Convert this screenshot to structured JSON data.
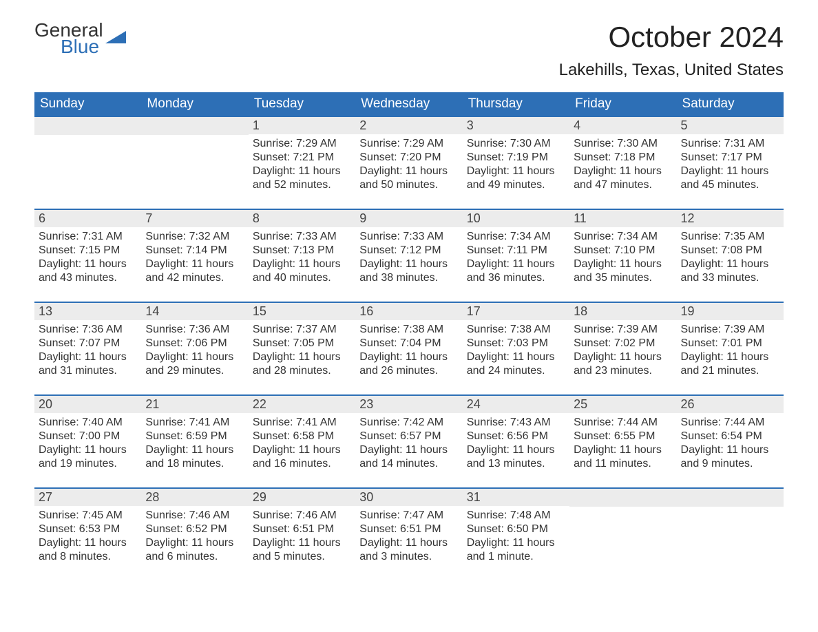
{
  "logo": {
    "text1": "General",
    "text2": "Blue",
    "flag_color": "#2d6fb6",
    "text_color_dark": "#333333"
  },
  "header": {
    "title": "October 2024",
    "location": "Lakehills, Texas, United States"
  },
  "colors": {
    "header_bg": "#2d6fb6",
    "header_text": "#ffffff",
    "row_accent": "#2d6fb6",
    "daynum_bg": "#ececec",
    "body_text": "#333333",
    "page_bg": "#ffffff"
  },
  "fonts": {
    "family": "Arial, Helvetica, sans-serif",
    "title_size_pt": 32,
    "location_size_pt": 18,
    "dayheader_size_pt": 14,
    "body_size_pt": 12
  },
  "calendar": {
    "type": "table",
    "columns": [
      "Sunday",
      "Monday",
      "Tuesday",
      "Wednesday",
      "Thursday",
      "Friday",
      "Saturday"
    ],
    "weeks": [
      [
        null,
        null,
        {
          "day": "1",
          "sunrise": "Sunrise: 7:29 AM",
          "sunset": "Sunset: 7:21 PM",
          "daylight1": "Daylight: 11 hours",
          "daylight2": "and 52 minutes."
        },
        {
          "day": "2",
          "sunrise": "Sunrise: 7:29 AM",
          "sunset": "Sunset: 7:20 PM",
          "daylight1": "Daylight: 11 hours",
          "daylight2": "and 50 minutes."
        },
        {
          "day": "3",
          "sunrise": "Sunrise: 7:30 AM",
          "sunset": "Sunset: 7:19 PM",
          "daylight1": "Daylight: 11 hours",
          "daylight2": "and 49 minutes."
        },
        {
          "day": "4",
          "sunrise": "Sunrise: 7:30 AM",
          "sunset": "Sunset: 7:18 PM",
          "daylight1": "Daylight: 11 hours",
          "daylight2": "and 47 minutes."
        },
        {
          "day": "5",
          "sunrise": "Sunrise: 7:31 AM",
          "sunset": "Sunset: 7:17 PM",
          "daylight1": "Daylight: 11 hours",
          "daylight2": "and 45 minutes."
        }
      ],
      [
        {
          "day": "6",
          "sunrise": "Sunrise: 7:31 AM",
          "sunset": "Sunset: 7:15 PM",
          "daylight1": "Daylight: 11 hours",
          "daylight2": "and 43 minutes."
        },
        {
          "day": "7",
          "sunrise": "Sunrise: 7:32 AM",
          "sunset": "Sunset: 7:14 PM",
          "daylight1": "Daylight: 11 hours",
          "daylight2": "and 42 minutes."
        },
        {
          "day": "8",
          "sunrise": "Sunrise: 7:33 AM",
          "sunset": "Sunset: 7:13 PM",
          "daylight1": "Daylight: 11 hours",
          "daylight2": "and 40 minutes."
        },
        {
          "day": "9",
          "sunrise": "Sunrise: 7:33 AM",
          "sunset": "Sunset: 7:12 PM",
          "daylight1": "Daylight: 11 hours",
          "daylight2": "and 38 minutes."
        },
        {
          "day": "10",
          "sunrise": "Sunrise: 7:34 AM",
          "sunset": "Sunset: 7:11 PM",
          "daylight1": "Daylight: 11 hours",
          "daylight2": "and 36 minutes."
        },
        {
          "day": "11",
          "sunrise": "Sunrise: 7:34 AM",
          "sunset": "Sunset: 7:10 PM",
          "daylight1": "Daylight: 11 hours",
          "daylight2": "and 35 minutes."
        },
        {
          "day": "12",
          "sunrise": "Sunrise: 7:35 AM",
          "sunset": "Sunset: 7:08 PM",
          "daylight1": "Daylight: 11 hours",
          "daylight2": "and 33 minutes."
        }
      ],
      [
        {
          "day": "13",
          "sunrise": "Sunrise: 7:36 AM",
          "sunset": "Sunset: 7:07 PM",
          "daylight1": "Daylight: 11 hours",
          "daylight2": "and 31 minutes."
        },
        {
          "day": "14",
          "sunrise": "Sunrise: 7:36 AM",
          "sunset": "Sunset: 7:06 PM",
          "daylight1": "Daylight: 11 hours",
          "daylight2": "and 29 minutes."
        },
        {
          "day": "15",
          "sunrise": "Sunrise: 7:37 AM",
          "sunset": "Sunset: 7:05 PM",
          "daylight1": "Daylight: 11 hours",
          "daylight2": "and 28 minutes."
        },
        {
          "day": "16",
          "sunrise": "Sunrise: 7:38 AM",
          "sunset": "Sunset: 7:04 PM",
          "daylight1": "Daylight: 11 hours",
          "daylight2": "and 26 minutes."
        },
        {
          "day": "17",
          "sunrise": "Sunrise: 7:38 AM",
          "sunset": "Sunset: 7:03 PM",
          "daylight1": "Daylight: 11 hours",
          "daylight2": "and 24 minutes."
        },
        {
          "day": "18",
          "sunrise": "Sunrise: 7:39 AM",
          "sunset": "Sunset: 7:02 PM",
          "daylight1": "Daylight: 11 hours",
          "daylight2": "and 23 minutes."
        },
        {
          "day": "19",
          "sunrise": "Sunrise: 7:39 AM",
          "sunset": "Sunset: 7:01 PM",
          "daylight1": "Daylight: 11 hours",
          "daylight2": "and 21 minutes."
        }
      ],
      [
        {
          "day": "20",
          "sunrise": "Sunrise: 7:40 AM",
          "sunset": "Sunset: 7:00 PM",
          "daylight1": "Daylight: 11 hours",
          "daylight2": "and 19 minutes."
        },
        {
          "day": "21",
          "sunrise": "Sunrise: 7:41 AM",
          "sunset": "Sunset: 6:59 PM",
          "daylight1": "Daylight: 11 hours",
          "daylight2": "and 18 minutes."
        },
        {
          "day": "22",
          "sunrise": "Sunrise: 7:41 AM",
          "sunset": "Sunset: 6:58 PM",
          "daylight1": "Daylight: 11 hours",
          "daylight2": "and 16 minutes."
        },
        {
          "day": "23",
          "sunrise": "Sunrise: 7:42 AM",
          "sunset": "Sunset: 6:57 PM",
          "daylight1": "Daylight: 11 hours",
          "daylight2": "and 14 minutes."
        },
        {
          "day": "24",
          "sunrise": "Sunrise: 7:43 AM",
          "sunset": "Sunset: 6:56 PM",
          "daylight1": "Daylight: 11 hours",
          "daylight2": "and 13 minutes."
        },
        {
          "day": "25",
          "sunrise": "Sunrise: 7:44 AM",
          "sunset": "Sunset: 6:55 PM",
          "daylight1": "Daylight: 11 hours",
          "daylight2": "and 11 minutes."
        },
        {
          "day": "26",
          "sunrise": "Sunrise: 7:44 AM",
          "sunset": "Sunset: 6:54 PM",
          "daylight1": "Daylight: 11 hours",
          "daylight2": "and 9 minutes."
        }
      ],
      [
        {
          "day": "27",
          "sunrise": "Sunrise: 7:45 AM",
          "sunset": "Sunset: 6:53 PM",
          "daylight1": "Daylight: 11 hours",
          "daylight2": "and 8 minutes."
        },
        {
          "day": "28",
          "sunrise": "Sunrise: 7:46 AM",
          "sunset": "Sunset: 6:52 PM",
          "daylight1": "Daylight: 11 hours",
          "daylight2": "and 6 minutes."
        },
        {
          "day": "29",
          "sunrise": "Sunrise: 7:46 AM",
          "sunset": "Sunset: 6:51 PM",
          "daylight1": "Daylight: 11 hours",
          "daylight2": "and 5 minutes."
        },
        {
          "day": "30",
          "sunrise": "Sunrise: 7:47 AM",
          "sunset": "Sunset: 6:51 PM",
          "daylight1": "Daylight: 11 hours",
          "daylight2": "and 3 minutes."
        },
        {
          "day": "31",
          "sunrise": "Sunrise: 7:48 AM",
          "sunset": "Sunset: 6:50 PM",
          "daylight1": "Daylight: 11 hours",
          "daylight2": "and 1 minute."
        },
        null,
        null
      ]
    ]
  }
}
